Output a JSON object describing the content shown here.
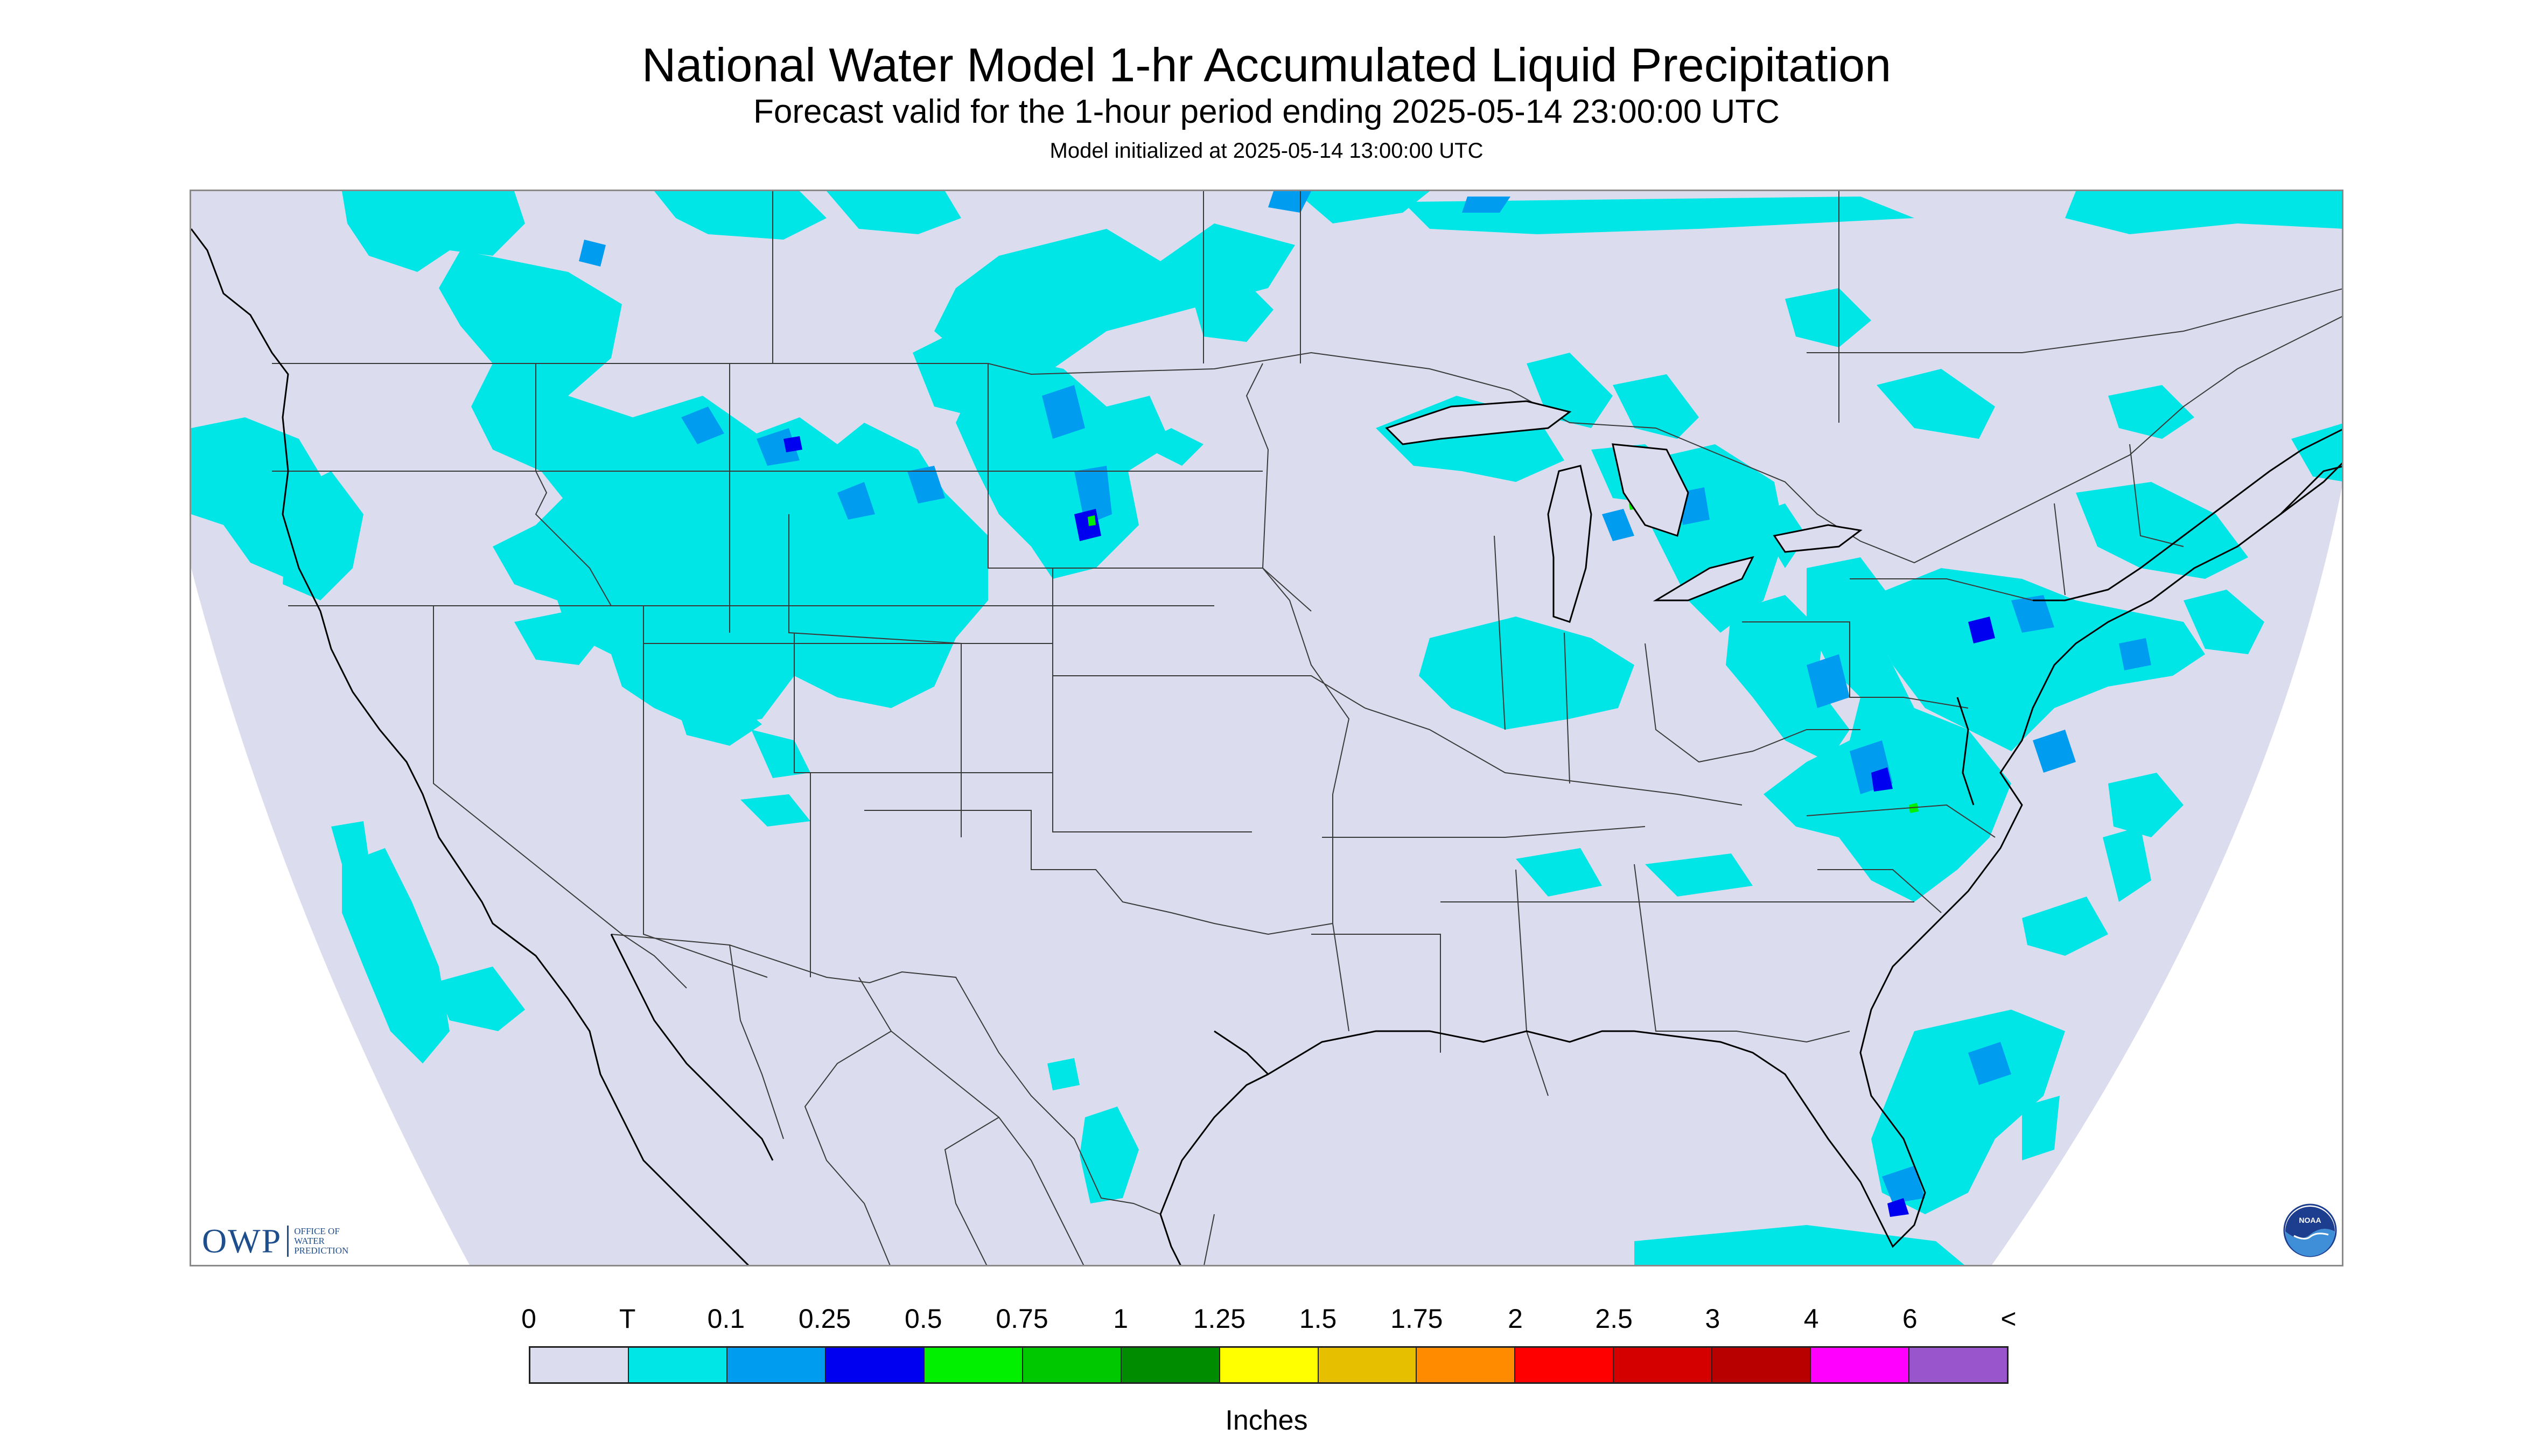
{
  "title": "National Water Model 1-hr Accumulated Liquid Precipitation",
  "subtitle": "Forecast valid for the 1-hour period ending 2025-05-14 23:00:00 UTC",
  "init": "Model initialized at 2025-05-14 13:00:00 UTC",
  "map": {
    "no_precip_color": "#dcdcef",
    "coastline_color": "#000000",
    "border_color": "#3a3a3a",
    "precip_colors": {
      "trace": "#00e6e6",
      "light": "#009cf0",
      "moderate": "#0000f0",
      "heavy": "#00f000"
    }
  },
  "logos": {
    "owp_mark": "OWP",
    "owp_lines": [
      "Office of",
      "Water",
      "Prediction"
    ],
    "noaa_text": "NOAA",
    "noaa_icon": "noaa-logo-icon"
  },
  "legend": {
    "labels": [
      "0",
      "T",
      "0.1",
      "0.25",
      "0.5",
      "0.75",
      "1",
      "1.25",
      "1.5",
      "1.75",
      "2",
      "2.5",
      "3",
      "4",
      "6",
      "<"
    ],
    "colors": [
      "#dcdcef",
      "#00e6e6",
      "#009cf0",
      "#0000f0",
      "#00f000",
      "#00c800",
      "#008c00",
      "#ffff00",
      "#e6c000",
      "#ff8c00",
      "#ff0000",
      "#d40000",
      "#b80000",
      "#ff00ff",
      "#9955cc"
    ],
    "units": "Inches"
  }
}
